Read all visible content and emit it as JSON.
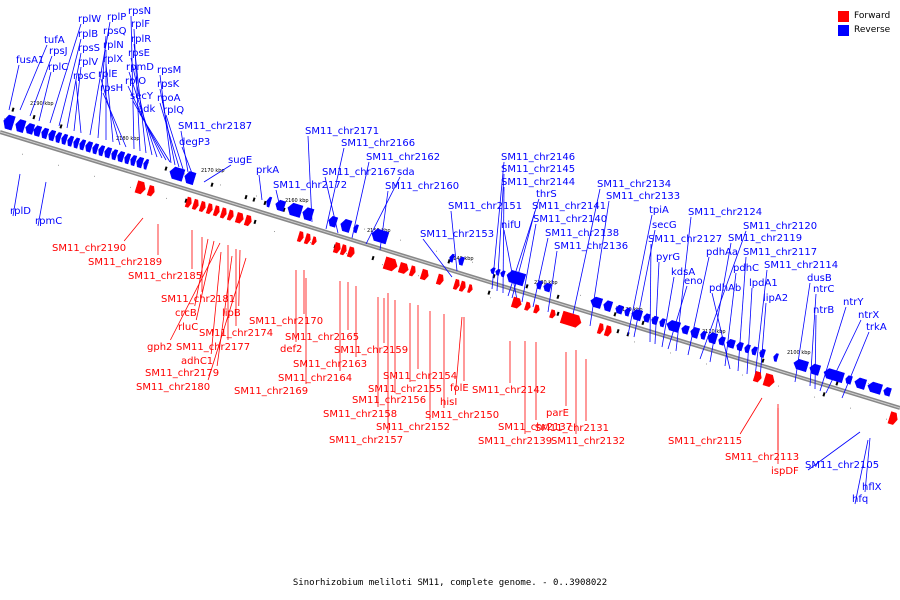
{
  "caption": "Sinorhizobium meliloti SM11, complete genome. - 0..3908022",
  "legend": {
    "forward": {
      "label": "Forward",
      "color": "#ff0000"
    },
    "reverse": {
      "label": "Reverse",
      "color": "#0000ff"
    }
  },
  "scale_ticks": [
    "2190 kbp",
    "2180 kbp",
    "2170 kbp",
    "2160 kbp",
    "2150 kbp",
    "2140 kbp",
    "2130 kbp",
    "2120 kbp",
    "2110 kbp",
    "2100 kbp"
  ],
  "reverse_labels_above": [
    "fusA1",
    "tufA",
    "rpsJ",
    "rplC",
    "rplW",
    "rplB",
    "rpsS",
    "rplV",
    "rpsC",
    "rplP",
    "rpsQ",
    "rplN",
    "rplX",
    "rplE",
    "rpsH",
    "rpsN",
    "rplF",
    "rplR",
    "rpsE",
    "rpmD",
    "rplO",
    "secY",
    "adk",
    "rpsM",
    "rpsK",
    "rpoA",
    "rplQ",
    "SM11_chr2187",
    "degP3",
    "sugE",
    "prkA",
    "SM11_chr2172",
    "SM11_chr2171",
    "SM11_chr2166",
    "SM11_chr2167",
    "SM11_chr2162",
    "sda",
    "SM11_chr2160",
    "SM11_chr2151",
    "SM11_chr2153",
    "SM11_chr2146",
    "SM11_chr2145",
    "SM11_chr2144",
    "thrS",
    "SM11_chr2141",
    "nifU",
    "SM11_chr2140",
    "SM11_chr2138",
    "SM11_chr2136",
    "SM11_chr2134",
    "SM11_chr2133",
    "tpiA",
    "secG",
    "SM11_chr2127",
    "pyrG",
    "kdsA",
    "eno",
    "SM11_chr2124",
    "pdhAa",
    "SM11_chr2120",
    "SM11_chr2119",
    "pdhC",
    "pdhAb",
    "SM11_chr2117",
    "lpdA1",
    "SM11_chr2114",
    "lipA2",
    "dusB",
    "ntrC",
    "ntrB",
    "ntrY",
    "ntrX",
    "trkA"
  ],
  "reverse_labels_below": [
    "rplD",
    "rpmC",
    "SM11_chr2105",
    "hflX",
    "hfq"
  ],
  "forward_labels": [
    "SM11_chr2190",
    "SM11_chr2189",
    "SM11_chr2185",
    "SM11_chr2181",
    "crcB",
    "rluC",
    "gph2",
    "SM11_chr2177",
    "SM11_chr2174",
    "lipB",
    "adhC1",
    "SM11_chr2179",
    "SM11_chr2180",
    "SM11_chr2170",
    "def2",
    "SM11_chr2169",
    "SM11_chr2165",
    "SM11_chr2163",
    "SM11_chr2164",
    "SM11_chr2159",
    "SM11_chr2154",
    "SM11_chr2155",
    "SM11_chr2156",
    "SM11_chr2158",
    "SM11_chr2150",
    "SM11_chr2152",
    "SM11_chr2157",
    "hisI",
    "folE",
    "SM11_chr2142",
    "SM11_chr2137",
    "SM11_chr2139",
    "parE",
    "SM11_chr2132",
    "SM11_chr2131",
    "SM11_chr2115",
    "SM11_chr2113",
    "ispDF"
  ]
}
